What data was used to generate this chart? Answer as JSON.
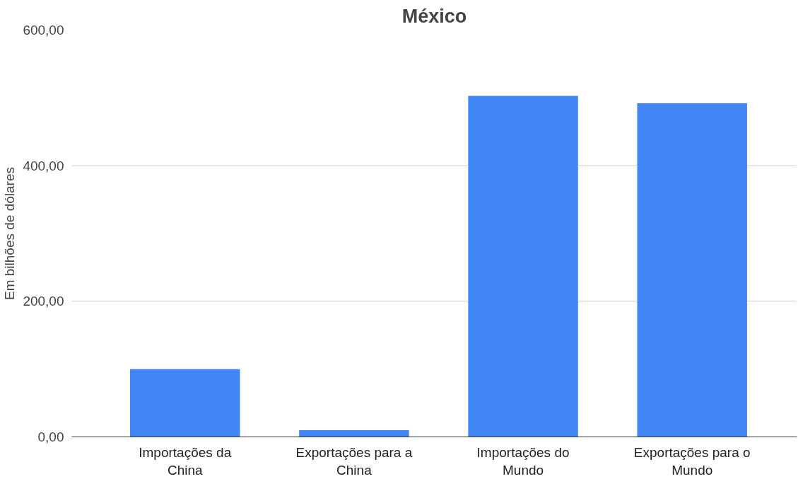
{
  "chart_data": {
    "type": "bar",
    "title": "México",
    "ylabel": "Em bilhões de dólares",
    "categories": [
      "Importações da China",
      "Exportações para a China",
      "Importações do Mundo",
      "Exportações para o Mundo"
    ],
    "values": [
      100,
      10,
      503,
      492
    ],
    "color": "#4285f4",
    "ylim": [
      0,
      600
    ],
    "yticks": [
      {
        "value": 0,
        "label": "0,00"
      },
      {
        "value": 200,
        "label": "200,00"
      },
      {
        "value": 400,
        "label": "400,00"
      },
      {
        "value": 600,
        "label": "600,00"
      }
    ],
    "grid": "y"
  }
}
